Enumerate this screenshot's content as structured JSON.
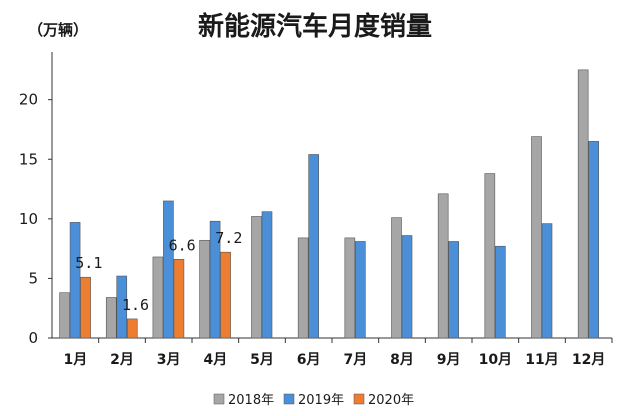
{
  "chart_data": {
    "type": "bar",
    "title": "新能源汽车月度销量",
    "unit_label": "（万辆）",
    "xlabel": "",
    "ylabel": "",
    "ylim": [
      0,
      24
    ],
    "yticks": [
      0,
      5,
      10,
      15,
      20
    ],
    "categories": [
      "1月",
      "2月",
      "3月",
      "4月",
      "5月",
      "6月",
      "7月",
      "8月",
      "9月",
      "10月",
      "11月",
      "12月"
    ],
    "series": [
      {
        "name": "2018年",
        "color": "#a6a6a6",
        "values": [
          3.8,
          3.4,
          6.8,
          8.2,
          10.2,
          8.4,
          8.4,
          10.1,
          12.1,
          13.8,
          16.9,
          22.5
        ]
      },
      {
        "name": "2019年",
        "color": "#4a8fd8",
        "values": [
          9.7,
          5.2,
          11.5,
          9.8,
          10.6,
          15.4,
          8.1,
          8.6,
          8.1,
          7.7,
          9.6,
          16.5
        ]
      },
      {
        "name": "2020年",
        "color": "#ed7d31",
        "values": [
          5.1,
          1.6,
          6.6,
          7.2,
          null,
          null,
          null,
          null,
          null,
          null,
          null,
          null
        ]
      }
    ],
    "data_labels": [
      {
        "series": 2,
        "index": 0,
        "text": "5.1"
      },
      {
        "series": 2,
        "index": 1,
        "text": "1.6"
      },
      {
        "series": 2,
        "index": 2,
        "text": "6.6"
      },
      {
        "series": 2,
        "index": 3,
        "text": "7.2"
      }
    ],
    "grid": false,
    "legend_position": "bottom"
  }
}
